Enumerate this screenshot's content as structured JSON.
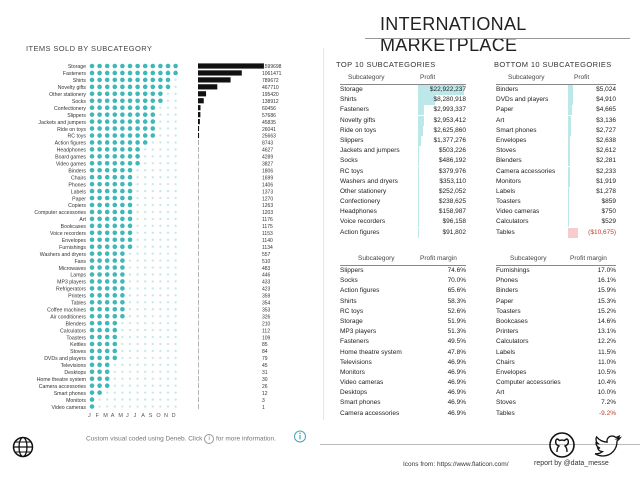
{
  "header": {
    "title": "INTERNATIONAL MARKETPLACE"
  },
  "left_chart": {
    "title": "ITEMS SOLD BY SUBCATEGORY",
    "months": [
      "J",
      "F",
      "M",
      "A",
      "M",
      "J",
      "J",
      "A",
      "S",
      "O",
      "N",
      "D"
    ],
    "bar_color": "#111111",
    "dot_color": "#3fb8b8"
  },
  "chart_data": {
    "type": "bar",
    "title": "ITEMS SOLD BY SUBCATEGORY",
    "categories": [
      "Storage",
      "Fasteners",
      "Shirts",
      "Novelty gifts",
      "Other stationery",
      "Socks",
      "Confectionery",
      "Slippers",
      "Jackets and jumpers",
      "Ride on toys",
      "RC toys",
      "Action figures",
      "Headphones",
      "Board games",
      "Video games",
      "Binders",
      "Chairs",
      "Phones",
      "Labels",
      "Paper",
      "Copiers",
      "Computer accessories",
      "Art",
      "Bookcases",
      "Voice recorders",
      "Envelopes",
      "Furnishings",
      "Washers and dryers",
      "Fans",
      "Microwaves",
      "Lamps",
      "MP3 players",
      "Refrigerators",
      "Printers",
      "Tables",
      "Coffee machines",
      "Air conditioners",
      "Blenders",
      "Calculators",
      "Toasters",
      "Kettles",
      "Stoves",
      "DVDs and players",
      "Televisions",
      "Desktops",
      "Home theatre system",
      "Camera accessories",
      "Smart phones",
      "Monitors",
      "Video cameras"
    ],
    "values": [
      1599698,
      1061471,
      789672,
      467710,
      195420,
      138912,
      60456,
      57686,
      45835,
      26041,
      25663,
      8743,
      4627,
      4289,
      3827,
      1806,
      1699,
      1406,
      1373,
      1270,
      1263,
      1203,
      1176,
      1175,
      1153,
      1140,
      1134,
      557,
      510,
      483,
      446,
      433,
      423,
      359,
      354,
      353,
      326,
      210,
      112,
      109,
      85,
      84,
      79,
      45,
      31,
      30,
      26,
      12,
      3,
      1
    ],
    "dot_months": [
      12,
      12,
      12,
      12,
      12,
      12,
      12,
      12,
      12,
      12,
      12,
      12,
      12,
      12,
      12,
      12,
      12,
      12,
      12,
      12,
      12,
      12,
      12,
      12,
      12,
      12,
      12,
      12,
      12,
      12,
      12,
      12,
      12,
      12,
      12,
      12,
      12,
      12,
      12,
      12,
      12,
      12,
      12,
      12,
      12,
      12,
      12,
      12,
      12,
      12
    ],
    "xlabel": "",
    "ylabel": ""
  },
  "top10": {
    "title": "TOP 10 SUBCATEGORIES",
    "col1": "Subcategory",
    "col2": "Profit",
    "rows": [
      {
        "name": "Storage",
        "value": "$22,922,237",
        "v": 22922237
      },
      {
        "name": "Shirts",
        "value": "$8,280,918",
        "v": 8280918
      },
      {
        "name": "Fasteners",
        "value": "$2,993,337",
        "v": 2993337
      },
      {
        "name": "Novelty gifts",
        "value": "$2,953,412",
        "v": 2953412
      },
      {
        "name": "Ride on toys",
        "value": "$2,625,860",
        "v": 2625860
      },
      {
        "name": "Slippers",
        "value": "$1,377,276",
        "v": 1377276
      },
      {
        "name": "Jackets and jumpers",
        "value": "$503,226",
        "v": 503226
      },
      {
        "name": "Socks",
        "value": "$486,192",
        "v": 486192
      },
      {
        "name": "RC toys",
        "value": "$379,976",
        "v": 379976
      },
      {
        "name": "Washers and dryers",
        "value": "$353,110",
        "v": 353110
      },
      {
        "name": "Other stationery",
        "value": "$252,052",
        "v": 252052
      },
      {
        "name": "Confectionery",
        "value": "$238,625",
        "v": 238625
      },
      {
        "name": "Headphones",
        "value": "$158,987",
        "v": 158987
      },
      {
        "name": "Voice recorders",
        "value": "$96,158",
        "v": 96158
      },
      {
        "name": "Action figures",
        "value": "$91,802",
        "v": 91802
      }
    ]
  },
  "bottom10": {
    "title": "BOTTOM 10 SUBCATEGORIES",
    "col1": "Subcategory",
    "col2": "Profit",
    "rows": [
      {
        "name": "Binders",
        "value": "$5,024",
        "v": 5024
      },
      {
        "name": "DVDs and players",
        "value": "$4,910",
        "v": 4910
      },
      {
        "name": "Paper",
        "value": "$4,665",
        "v": 4665
      },
      {
        "name": "Art",
        "value": "$3,136",
        "v": 3136
      },
      {
        "name": "Smart phones",
        "value": "$2,727",
        "v": 2727
      },
      {
        "name": "Envelopes",
        "value": "$2,638",
        "v": 2638
      },
      {
        "name": "Stoves",
        "value": "$2,612",
        "v": 2612
      },
      {
        "name": "Blenders",
        "value": "$2,281",
        "v": 2281
      },
      {
        "name": "Camera accessories",
        "value": "$2,233",
        "v": 2233
      },
      {
        "name": "Monitors",
        "value": "$1,919",
        "v": 1919
      },
      {
        "name": "Labels",
        "value": "$1,278",
        "v": 1278
      },
      {
        "name": "Toasters",
        "value": "$859",
        "v": 859
      },
      {
        "name": "Video cameras",
        "value": "$750",
        "v": 750
      },
      {
        "name": "Calculators",
        "value": "$529",
        "v": 529
      },
      {
        "name": "Tables",
        "value": "($10,675)",
        "v": -10675
      }
    ]
  },
  "margin_left": {
    "col1": "Subcategory",
    "col2": "Profit margin",
    "rows": [
      {
        "name": "Slippers",
        "value": "74.6%"
      },
      {
        "name": "Socks",
        "value": "70.0%"
      },
      {
        "name": "Action figures",
        "value": "65.6%"
      },
      {
        "name": "Shirts",
        "value": "58.3%"
      },
      {
        "name": "RC toys",
        "value": "52.6%"
      },
      {
        "name": "Storage",
        "value": "51.9%"
      },
      {
        "name": "MP3 players",
        "value": "51.3%"
      },
      {
        "name": "Fasteners",
        "value": "49.5%"
      },
      {
        "name": "Home theatre system",
        "value": "47.8%"
      },
      {
        "name": "Televisions",
        "value": "46.9%"
      },
      {
        "name": "Monitors",
        "value": "46.9%"
      },
      {
        "name": "Video cameras",
        "value": "46.9%"
      },
      {
        "name": "Desktops",
        "value": "46.9%"
      },
      {
        "name": "Smart phones",
        "value": "46.9%"
      },
      {
        "name": "Camera accessories",
        "value": "46.9%"
      }
    ]
  },
  "margin_right": {
    "col1": "Subcategory",
    "col2": "Profit margin",
    "rows": [
      {
        "name": "Furnishings",
        "value": "17.0%"
      },
      {
        "name": "Phones",
        "value": "16.1%"
      },
      {
        "name": "Binders",
        "value": "15.9%"
      },
      {
        "name": "Paper",
        "value": "15.3%"
      },
      {
        "name": "Toasters",
        "value": "15.2%"
      },
      {
        "name": "Bookcases",
        "value": "14.6%"
      },
      {
        "name": "Printers",
        "value": "13.1%"
      },
      {
        "name": "Calculators",
        "value": "12.2%"
      },
      {
        "name": "Labels",
        "value": "11.5%"
      },
      {
        "name": "Chairs",
        "value": "11.0%"
      },
      {
        "name": "Envelopes",
        "value": "10.5%"
      },
      {
        "name": "Computer accessories",
        "value": "10.4%"
      },
      {
        "name": "Art",
        "value": "10.0%"
      },
      {
        "name": "Stoves",
        "value": "7.2%"
      },
      {
        "name": "Tables",
        "value": "-9.2%"
      }
    ]
  },
  "footer": {
    "note_prefix": "Custom visual coded using Deneb. Click",
    "note_suffix": "for more information.",
    "info_glyph": "i",
    "icons_from": "Icons from:",
    "icons_url": "https://www.flaticon.com/",
    "report_by": "report by @data_messe"
  },
  "colors": {
    "teal": "#3fb8b8",
    "bar_fill": "#bde8ea",
    "negative": "#c0392b"
  }
}
